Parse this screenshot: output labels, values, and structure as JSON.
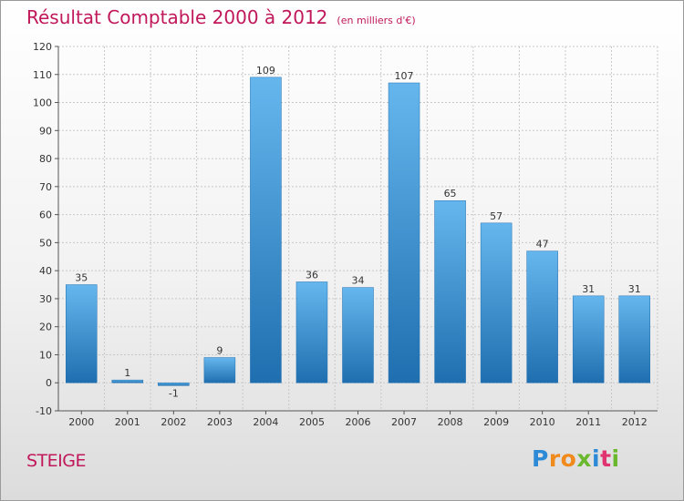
{
  "header": {
    "title": "Résultat Comptable 2000 à 2012",
    "unit": "(en milliers d'€)"
  },
  "commune": "STEIGE",
  "logo": {
    "text": "Proxiti",
    "letters": [
      {
        "char": "P",
        "color": "#2d8ad6"
      },
      {
        "char": "r",
        "color": "#f08a1c"
      },
      {
        "char": "o",
        "color": "#f08a1c"
      },
      {
        "char": "x",
        "color": "#6ab82e"
      },
      {
        "char": "i",
        "color": "#2d8ad6"
      },
      {
        "char": "t",
        "color": "#e0336f"
      },
      {
        "char": "i",
        "color": "#6ab82e"
      }
    ]
  },
  "chart_data": {
    "type": "bar",
    "title": "Résultat Comptable 2000 à 2012",
    "subtitle": "(en milliers d'€)",
    "xlabel": "",
    "ylabel": "",
    "categories": [
      "2000",
      "2001",
      "2002",
      "2003",
      "2004",
      "2005",
      "2006",
      "2007",
      "2008",
      "2009",
      "2010",
      "2011",
      "2012"
    ],
    "values": [
      35,
      1,
      -1,
      9,
      109,
      36,
      34,
      107,
      65,
      57,
      47,
      31,
      31
    ],
    "value_labels": [
      "35",
      "1",
      "-1",
      "9",
      "109",
      "36",
      "34",
      "107",
      "65",
      "57",
      "47",
      "31",
      "31"
    ],
    "ylim": [
      -10,
      120
    ],
    "yticks": [
      -10,
      0,
      10,
      20,
      30,
      40,
      50,
      60,
      70,
      80,
      90,
      100,
      110,
      120
    ],
    "grid": true,
    "legend": "none",
    "colors": {
      "bar": "#4a9fe0",
      "bar_light": "#66b6ee",
      "bar_dark": "#1f6fb0",
      "grid": "#c8c8c8",
      "axis": "#555555"
    }
  }
}
